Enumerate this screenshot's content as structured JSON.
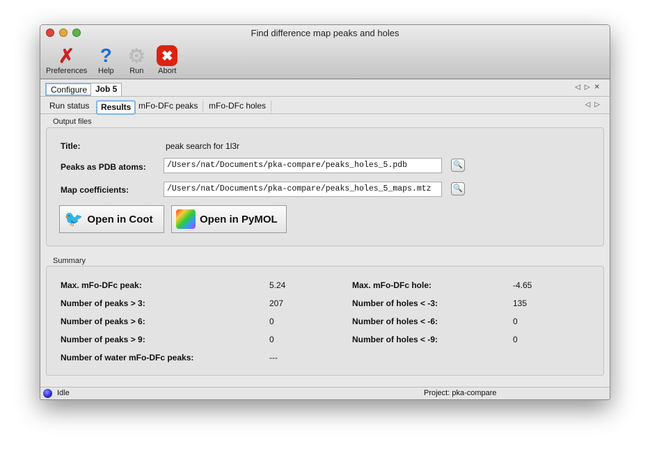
{
  "window": {
    "title": "Find difference map peaks and holes"
  },
  "toolbar": [
    {
      "label": "Preferences",
      "icon": "tools-icon"
    },
    {
      "label": "Help",
      "icon": "help-icon"
    },
    {
      "label": "Run",
      "icon": "gear-icon"
    },
    {
      "label": "Abort",
      "icon": "abort-icon"
    }
  ],
  "tabs": [
    {
      "label": "Configure"
    },
    {
      "label": "Job 5",
      "selected": true
    }
  ],
  "subtabs": [
    {
      "label": "Run status"
    },
    {
      "label": "Results",
      "selected": true
    },
    {
      "label": "mFo-DFc peaks"
    },
    {
      "label": "mFo-DFc holes"
    }
  ],
  "output": {
    "group_label": "Output files",
    "title_label": "Title:",
    "title_value": "peak search for 1l3r",
    "pdb_label": "Peaks as PDB atoms:",
    "pdb_value": "/Users/nat/Documents/pka-compare/peaks_holes_5.pdb",
    "map_label": "Map coefficients:",
    "map_value": "/Users/nat/Documents/pka-compare/peaks_holes_5_maps.mtz",
    "coot_label": "Open in Coot",
    "pymol_label": "Open in PyMOL"
  },
  "summary": {
    "group_label": "Summary",
    "left": [
      {
        "label": "Max. mFo-DFc peak:",
        "value": "5.24"
      },
      {
        "label": "Number of peaks > 3:",
        "value": "207"
      },
      {
        "label": "Number of peaks > 6:",
        "value": "0"
      },
      {
        "label": "Number of peaks > 9:",
        "value": "0"
      },
      {
        "label": "Number of water mFo-DFc peaks:",
        "value": "---"
      }
    ],
    "right": [
      {
        "label": "Max. mFo-DFc hole:",
        "value": "-4.65"
      },
      {
        "label": "Number of holes < -3:",
        "value": "135"
      },
      {
        "label": "Number of holes < -6:",
        "value": "0"
      },
      {
        "label": "Number of holes < -9:",
        "value": "0"
      }
    ]
  },
  "status": {
    "state": "Idle",
    "project": "Project: pka-compare",
    "indicator_color": "#2a2ad8"
  }
}
